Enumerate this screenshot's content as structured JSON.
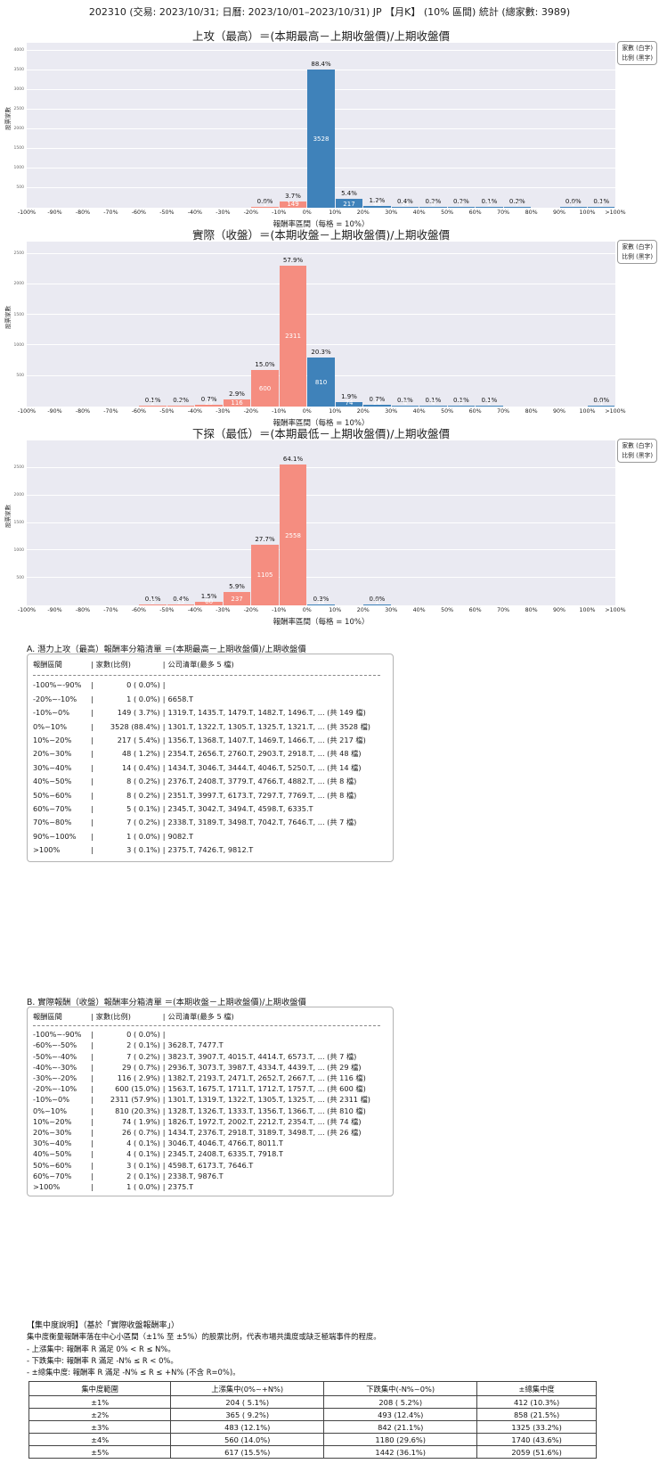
{
  "page_title": "202310 (交易: 2023/10/31; 日曆: 2023/10/01–2023/10/31) JP 【月K】 (10% 區間) 統計 (總家數: 3989)",
  "total_count": 3989,
  "legend": [
    "家數 (白字)",
    "比例 (黑字)"
  ],
  "colors": {
    "positive_bar": "#3f82ba",
    "negative_bar": "#f58d80",
    "plot_bg": "#eaeaf2",
    "grid": "#ffffff"
  },
  "x_edges": [
    "-100%",
    "-90%",
    "-80%",
    "-70%",
    "-60%",
    "-50%",
    "-40%",
    "-30%",
    "-20%",
    "-10%",
    "0%",
    "10%",
    "20%",
    "30%",
    "40%",
    "50%",
    "60%",
    "70%",
    "80%",
    "90%",
    "100%",
    ">100%"
  ],
  "chart_data": [
    {
      "type": "bar",
      "title": "上攻（最高）＝(本期最高－上期收盤價)/上期收盤價",
      "xlabel": "報酬率區間（每格 = 10%）",
      "ylabel": "股票家數",
      "ymax": 4200,
      "yticks": [
        500,
        1000,
        1500,
        2000,
        2500,
        3000,
        3500,
        4000
      ],
      "bars": [
        {
          "bin": 8,
          "range": "-20%~-10%",
          "count": 1,
          "pct": "0.0%"
        },
        {
          "bin": 9,
          "range": "-10%~0%",
          "count": 149,
          "pct": "3.7%"
        },
        {
          "bin": 10,
          "range": "0%~10%",
          "count": 3528,
          "pct": "88.4%"
        },
        {
          "bin": 11,
          "range": "10%~20%",
          "count": 217,
          "pct": "5.4%"
        },
        {
          "bin": 12,
          "range": "20%~30%",
          "count": 48,
          "pct": "1.2%"
        },
        {
          "bin": 13,
          "range": "30%~40%",
          "count": 14,
          "pct": "0.4%"
        },
        {
          "bin": 14,
          "range": "40%~50%",
          "count": 8,
          "pct": "0.2%"
        },
        {
          "bin": 15,
          "range": "50%~60%",
          "count": 8,
          "pct": "0.2%"
        },
        {
          "bin": 16,
          "range": "60%~70%",
          "count": 5,
          "pct": "0.1%"
        },
        {
          "bin": 17,
          "range": "70%~80%",
          "count": 7,
          "pct": "0.2%"
        },
        {
          "bin": 19,
          "range": "90%~100%",
          "count": 1,
          "pct": "0.0%"
        },
        {
          "bin": 20,
          "range": ">100%",
          "count": 3,
          "pct": "0.1%"
        }
      ]
    },
    {
      "type": "bar",
      "title": "實際（收盤）＝(本期收盤－上期收盤價)/上期收盤價",
      "xlabel": "報酬率區間（每格 = 10%）",
      "ylabel": "股票家數",
      "ymax": 2700,
      "yticks": [
        500,
        1000,
        1500,
        2000,
        2500
      ],
      "bars": [
        {
          "bin": 4,
          "range": "-60%~-50%",
          "count": 2,
          "pct": "0.1%"
        },
        {
          "bin": 5,
          "range": "-50%~-40%",
          "count": 7,
          "pct": "0.2%"
        },
        {
          "bin": 6,
          "range": "-40%~-30%",
          "count": 29,
          "pct": "0.7%"
        },
        {
          "bin": 7,
          "range": "-30%~-20%",
          "count": 116,
          "pct": "2.9%"
        },
        {
          "bin": 8,
          "range": "-20%~-10%",
          "count": 600,
          "pct": "15.0%"
        },
        {
          "bin": 9,
          "range": "-10%~0%",
          "count": 2311,
          "pct": "57.9%"
        },
        {
          "bin": 10,
          "range": "0%~10%",
          "count": 810,
          "pct": "20.3%"
        },
        {
          "bin": 11,
          "range": "10%~20%",
          "count": 74,
          "pct": "1.9%"
        },
        {
          "bin": 12,
          "range": "20%~30%",
          "count": 26,
          "pct": "0.7%"
        },
        {
          "bin": 13,
          "range": "30%~40%",
          "count": 4,
          "pct": "0.1%"
        },
        {
          "bin": 14,
          "range": "40%~50%",
          "count": 4,
          "pct": "0.1%"
        },
        {
          "bin": 15,
          "range": "50%~60%",
          "count": 3,
          "pct": "0.1%"
        },
        {
          "bin": 16,
          "range": "60%~70%",
          "count": 2,
          "pct": "0.1%"
        },
        {
          "bin": 20,
          "range": ">100%",
          "count": 1,
          "pct": "0.0%"
        }
      ]
    },
    {
      "type": "bar",
      "title": "下探（最低）＝(本期最低－上期收盤價)/上期收盤價",
      "xlabel": "報酬率區間（每格 = 10%）",
      "ylabel": "股票家數",
      "ymax": 3000,
      "yticks": [
        500,
        1000,
        1500,
        2000,
        2500
      ],
      "bars": [
        {
          "bin": 4,
          "range": "-60%~-50%",
          "count": 5,
          "pct": "0.1%"
        },
        {
          "bin": 5,
          "range": "-50%~-40%",
          "count": 15,
          "pct": "0.4%"
        },
        {
          "bin": 6,
          "range": "-40%~-30%",
          "count": 60,
          "pct": "1.5%"
        },
        {
          "bin": 7,
          "range": "-30%~-20%",
          "count": 237,
          "pct": "5.9%"
        },
        {
          "bin": 8,
          "range": "-20%~-10%",
          "count": 1105,
          "pct": "27.7%"
        },
        {
          "bin": 9,
          "range": "-10%~0%",
          "count": 2558,
          "pct": "64.1%"
        },
        {
          "bin": 10,
          "range": "0%~10%",
          "count": 12,
          "pct": "0.3%"
        },
        {
          "bin": 12,
          "range": "20%~30%",
          "count": 1,
          "pct": "0.0%"
        }
      ]
    }
  ],
  "section_a": {
    "title": "A. 潛力上攻（最高）報酬率分箱清單 ＝(本期最高－上期收盤價)/上期收盤價",
    "headers": [
      "報酬區間",
      "家數(比例)",
      "公司清單(最多 5 檔)"
    ],
    "rows": [
      [
        "-100%~-90%",
        "0 ( 0.0%)",
        ""
      ],
      [
        "-20%~-10%",
        "1 ( 0.0%)",
        "6658.T"
      ],
      [
        "-10%~0%",
        "149 ( 3.7%)",
        "1319.T, 1435.T, 1479.T, 1482.T, 1496.T, ... (共 149 檔)"
      ],
      [
        "0%~10%",
        "3528 (88.4%)",
        "1301.T, 1322.T, 1305.T, 1325.T, 1321.T, ... (共 3528 檔)"
      ],
      [
        "10%~20%",
        "217 ( 5.4%)",
        "1356.T, 1368.T, 1407.T, 1469.T, 1466.T, ... (共 217 檔)"
      ],
      [
        "20%~30%",
        "48 ( 1.2%)",
        "2354.T, 2656.T, 2760.T, 2903.T, 2918.T, ... (共 48 檔)"
      ],
      [
        "30%~40%",
        "14 ( 0.4%)",
        "1434.T, 3046.T, 3444.T, 4046.T, 5250.T, ... (共 14 檔)"
      ],
      [
        "40%~50%",
        "8 ( 0.2%)",
        "2376.T, 2408.T, 3779.T, 4766.T, 4882.T, ... (共 8 檔)"
      ],
      [
        "50%~60%",
        "8 ( 0.2%)",
        "2351.T, 3997.T, 6173.T, 7297.T, 7769.T, ... (共 8 檔)"
      ],
      [
        "60%~70%",
        "5 ( 0.1%)",
        "2345.T, 3042.T, 3494.T, 4598.T, 6335.T"
      ],
      [
        "70%~80%",
        "7 ( 0.2%)",
        "2338.T, 3189.T, 3498.T, 7042.T, 7646.T, ... (共 7 檔)"
      ],
      [
        "90%~100%",
        "1 ( 0.0%)",
        "9082.T"
      ],
      [
        ">100%",
        "3 ( 0.1%)",
        "2375.T, 7426.T, 9812.T"
      ]
    ]
  },
  "section_b": {
    "title": "B. 實際報酬（收盤）報酬率分箱清單 ＝(本期收盤－上期收盤價)/上期收盤價",
    "headers": [
      "報酬區間",
      "家數(比例)",
      "公司清單(最多 5 檔)"
    ],
    "rows": [
      [
        "-100%~-90%",
        "0 ( 0.0%)",
        ""
      ],
      [
        "-60%~-50%",
        "2 ( 0.1%)",
        "3628.T, 7477.T"
      ],
      [
        "-50%~-40%",
        "7 ( 0.2%)",
        "3823.T, 3907.T, 4015.T, 4414.T, 6573.T, ... (共 7 檔)"
      ],
      [
        "-40%~-30%",
        "29 ( 0.7%)",
        "2936.T, 3073.T, 3987.T, 4334.T, 4439.T, ... (共 29 檔)"
      ],
      [
        "-30%~-20%",
        "116 ( 2.9%)",
        "1382.T, 2193.T, 2471.T, 2652.T, 2667.T, ... (共 116 檔)"
      ],
      [
        "-20%~-10%",
        "600 (15.0%)",
        "1563.T, 1675.T, 1711.T, 1712.T, 1757.T, ... (共 600 檔)"
      ],
      [
        "-10%~0%",
        "2311 (57.9%)",
        "1301.T, 1319.T, 1322.T, 1305.T, 1325.T, ... (共 2311 檔)"
      ],
      [
        "0%~10%",
        "810 (20.3%)",
        "1328.T, 1326.T, 1333.T, 1356.T, 1366.T, ... (共 810 檔)"
      ],
      [
        "10%~20%",
        "74 ( 1.9%)",
        "1826.T, 1972.T, 2002.T, 2212.T, 2354.T, ... (共 74 檔)"
      ],
      [
        "20%~30%",
        "26 ( 0.7%)",
        "1434.T, 2376.T, 2918.T, 3189.T, 3498.T, ... (共 26 檔)"
      ],
      [
        "30%~40%",
        "4 ( 0.1%)",
        "3046.T, 4046.T, 4766.T, 8011.T"
      ],
      [
        "40%~50%",
        "4 ( 0.1%)",
        "2345.T, 2408.T, 6335.T, 7918.T"
      ],
      [
        "50%~60%",
        "3 ( 0.1%)",
        "4598.T, 6173.T, 7646.T"
      ],
      [
        "60%~70%",
        "2 ( 0.1%)",
        "2338.T, 9876.T"
      ],
      [
        ">100%",
        "1 ( 0.0%)",
        "2375.T"
      ]
    ]
  },
  "concentration": {
    "heading": "【集中度說明】（基於「實際收盤報酬率」）",
    "desc": "集中度衡量報酬率落在中心小區間（±1% 至 ±5%）的股票比例，代表市場共識度或缺乏極端事件的程度。",
    "rules": [
      "- 上漲集中: 報酬率 R 滿足 0% < R ≤ N%。",
      "- 下跌集中: 報酬率 R 滿足 -N% ≤ R < 0%。",
      "- ±總集中度: 報酬率 R 滿足 -N% ≤ R ≤ +N% (不含 R=0%)。"
    ],
    "table": {
      "headers": [
        "集中度範圍",
        "上漲集中(0%~+N%)",
        "下跌集中(-N%~0%)",
        "±總集中度"
      ],
      "rows": [
        [
          "±1%",
          "204 ( 5.1%)",
          "208 ( 5.2%)",
          "412 (10.3%)"
        ],
        [
          "±2%",
          "365 ( 9.2%)",
          "493 (12.4%)",
          "858 (21.5%)"
        ],
        [
          "±3%",
          "483 (12.1%)",
          "842 (21.1%)",
          "1325 (33.2%)"
        ],
        [
          "±4%",
          "560 (14.0%)",
          "1180 (29.6%)",
          "1740 (43.6%)"
        ],
        [
          "±5%",
          "617 (15.5%)",
          "1442 (36.1%)",
          "2059 (51.6%)"
        ]
      ]
    }
  }
}
